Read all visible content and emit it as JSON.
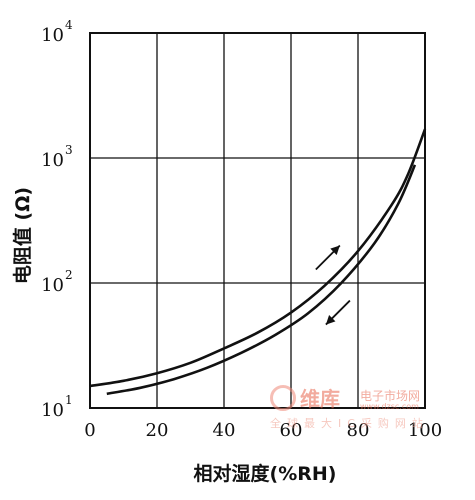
{
  "chart_data": {
    "type": "line",
    "xlabel": "相对湿度(%RH)",
    "ylabel": "电阻值 (Ω)",
    "x_ticks": [
      "0",
      "20",
      "40",
      "60",
      "80",
      "100"
    ],
    "y_ticks": [
      {
        "base": "10",
        "exp": "1"
      },
      {
        "base": "10",
        "exp": "2"
      },
      {
        "base": "10",
        "exp": "3"
      },
      {
        "base": "10",
        "exp": "4"
      }
    ],
    "xlim": [
      0,
      100
    ],
    "ylim": [
      10,
      10000
    ],
    "yscale": "log",
    "grid": true,
    "series": [
      {
        "x": [
          0,
          10,
          20,
          30,
          40,
          50,
          60,
          70,
          80,
          90,
          95,
          100
        ],
        "y": [
          15,
          16.5,
          19,
          23,
          30,
          40,
          58,
          95,
          180,
          420,
          750,
          1700
        ]
      },
      {
        "x": [
          5,
          15,
          25,
          35,
          45,
          55,
          65,
          75,
          85,
          92,
          97
        ],
        "y": [
          13,
          14.5,
          17,
          21,
          27.5,
          38,
          57,
          100,
          210,
          430,
          880
        ]
      }
    ],
    "arrows": [
      {
        "direction": "up",
        "x": 71,
        "y": 160
      },
      {
        "direction": "down",
        "x": 74,
        "y": 58
      }
    ]
  },
  "watermark": {
    "main": "维库",
    "sub": "电子市场网",
    "url": "www.dzsc.com",
    "line": "全球最大IC采购网站"
  }
}
